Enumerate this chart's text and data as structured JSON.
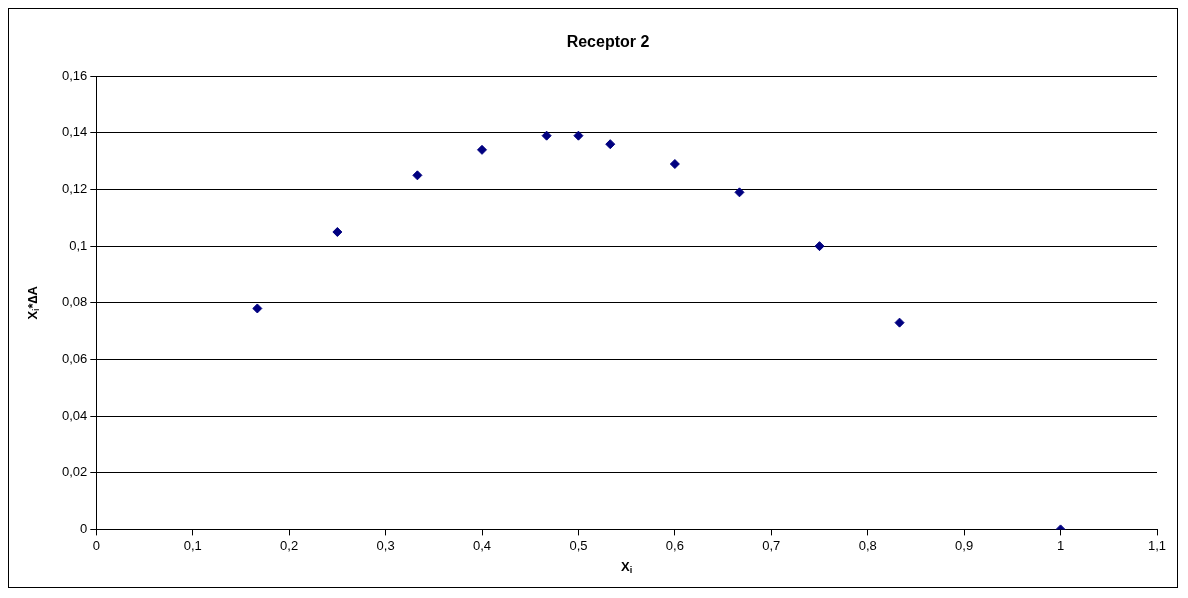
{
  "chart_data": {
    "type": "scatter",
    "title": "Receptor 2",
    "xlabel": "X$_{i}$",
    "ylabel": "X$_{i}$*∆A",
    "x": [
      0.167,
      0.25,
      0.333,
      0.4,
      0.467,
      0.5,
      0.533,
      0.6,
      0.667,
      0.75,
      0.833,
      1.0
    ],
    "series": [
      {
        "color": "#000080",
        "values": [
          0.078,
          0.105,
          0.125,
          0.134,
          0.139,
          0.139,
          0.136,
          0.129,
          0.119,
          0.1,
          0.073,
          0.0
        ]
      }
    ],
    "xlim": [
      0,
      1.1
    ],
    "xticks": [
      0,
      {
        "value": 0.1,
        "label": "0,1"
      },
      {
        "value": 0.2,
        "label": "0,2"
      },
      {
        "value": 0.3,
        "label": "0,3"
      },
      {
        "value": 0.4,
        "label": "0,4"
      },
      {
        "value": 0.5,
        "label": "0,5"
      },
      {
        "value": 0.6,
        "label": "0,6"
      },
      {
        "value": 0.7,
        "label": "0,7"
      },
      {
        "value": 0.8,
        "label": "0,8"
      },
      {
        "value": 0.9,
        "label": "0,9"
      },
      1,
      {
        "value": 1.1,
        "label": "1,1"
      }
    ],
    "ylim": [
      0,
      0.16
    ],
    "yticks": [
      0,
      {
        "value": 0.02,
        "label": "0,02"
      },
      {
        "value": 0.04,
        "label": "0,04"
      },
      {
        "value": 0.06,
        "label": "0,06"
      },
      {
        "value": 0.08,
        "label": "0,08"
      },
      {
        "value": 0.1,
        "label": "0,1"
      },
      {
        "value": 0.12,
        "label": "0,12"
      },
      {
        "value": 0.14,
        "label": "0,14"
      },
      {
        "value": 0.16,
        "label": "0,16"
      }
    ],
    "grid": "y",
    "legend": false,
    "marker": "diamond"
  }
}
